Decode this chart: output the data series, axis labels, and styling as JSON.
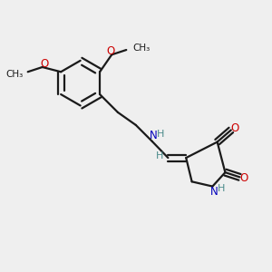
{
  "bg_color": "#efefef",
  "bond_color": "#1a1a1a",
  "O_color": "#cc0000",
  "N_color": "#0000bb",
  "H_color": "#4a8a8a",
  "line_width": 1.6,
  "dbo": 0.012,
  "figsize": [
    3.0,
    3.0
  ],
  "dpi": 100,
  "xlim": [
    0,
    1
  ],
  "ylim": [
    0,
    1
  ]
}
